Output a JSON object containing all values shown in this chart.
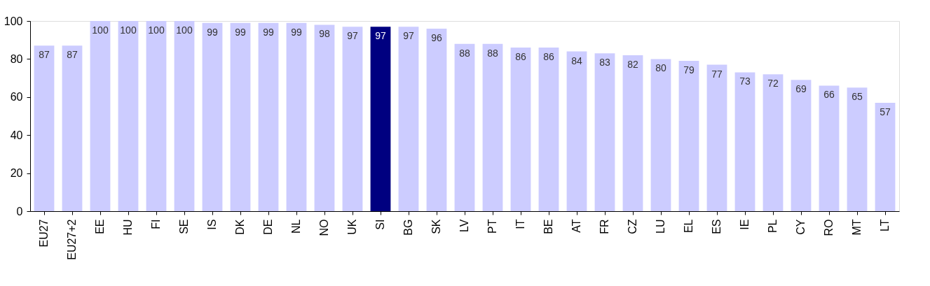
{
  "chart_data": {
    "type": "bar",
    "categories": [
      "EU27",
      "EU27+2",
      "EE",
      "HU",
      "FI",
      "SE",
      "IS",
      "DK",
      "DE",
      "NL",
      "NO",
      "UK",
      "SI",
      "BG",
      "SK",
      "LV",
      "PT",
      "IT",
      "BE",
      "AT",
      "FR",
      "CZ",
      "LU",
      "EL",
      "ES",
      "IE",
      "PL",
      "CY",
      "RO",
      "MT",
      "LT"
    ],
    "values": [
      87,
      87,
      100,
      100,
      100,
      100,
      99,
      99,
      99,
      99,
      98,
      97,
      97,
      97,
      96,
      88,
      88,
      86,
      86,
      84,
      83,
      82,
      80,
      79,
      77,
      73,
      72,
      69,
      66,
      65,
      57
    ],
    "colors": [
      "#ccccff",
      "#ccccff",
      "#ccccff",
      "#ccccff",
      "#ccccff",
      "#ccccff",
      "#ccccff",
      "#ccccff",
      "#ccccff",
      "#ccccff",
      "#ccccff",
      "#ccccff",
      "#000080",
      "#ccccff",
      "#ccccff",
      "#ccccff",
      "#ccccff",
      "#ccccff",
      "#ccccff",
      "#ccccff",
      "#ccccff",
      "#ccccff",
      "#ccccff",
      "#ccccff",
      "#ccccff",
      "#ccccff",
      "#ccccff",
      "#ccccff",
      "#ccccff",
      "#ccccff",
      "#ccccff"
    ],
    "ylim": [
      0,
      100
    ],
    "yticks": [
      0,
      20,
      40,
      60,
      80,
      100
    ],
    "grid": false,
    "data_labels": true
  }
}
